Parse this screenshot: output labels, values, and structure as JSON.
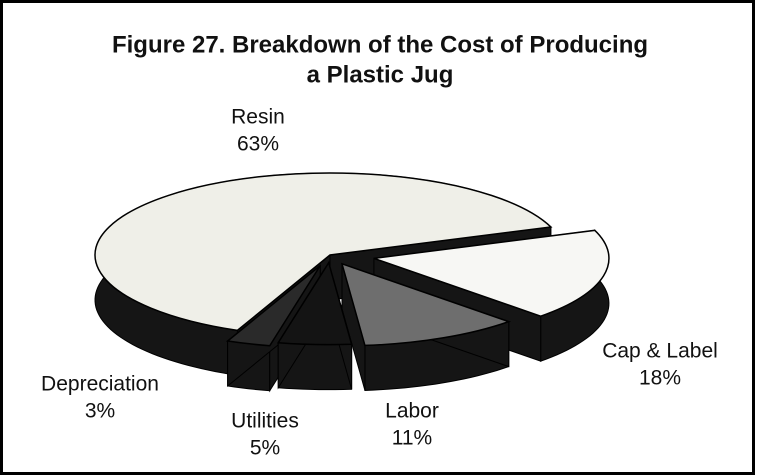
{
  "chart_data": {
    "type": "pie",
    "title": [
      "Figure 27.  Breakdown of the Cost of Producing",
      "a Plastic Jug"
    ],
    "categories": [
      "Cap & Label",
      "Labor",
      "Utilities",
      "Depreciation",
      "Resin"
    ],
    "values": [
      18,
      11,
      5,
      3,
      63
    ],
    "value_labels": [
      "18%",
      "11%",
      "5%",
      "3%",
      "63%"
    ],
    "colors": [
      "#f7f7f4",
      "#6e6e6e",
      "#141414",
      "#2a2a2a",
      "#efefe8"
    ],
    "side_color": "#151515"
  }
}
